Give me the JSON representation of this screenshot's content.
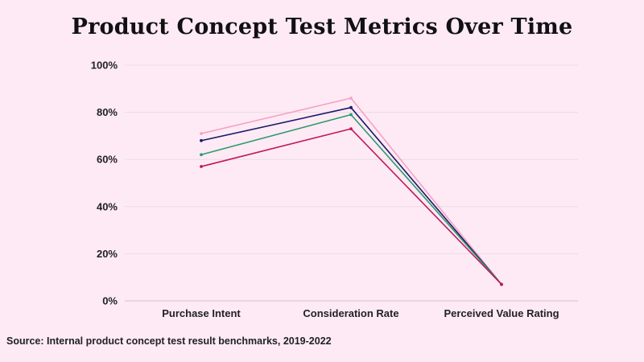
{
  "chart_data": {
    "type": "line",
    "title": "Product Concept Test Metrics Over Time",
    "categories": [
      "Purchase Intent",
      "Consideration Rate",
      "Perceived Value Rating"
    ],
    "ylim": [
      0,
      100
    ],
    "y_ticks": [
      "0%",
      "20%",
      "40%",
      "60%",
      "80%",
      "100%"
    ],
    "y_tick_values": [
      0,
      20,
      40,
      60,
      80,
      100
    ],
    "grid": true,
    "legend": "none",
    "series": [
      {
        "color": "#f7a1c4",
        "values": [
          71,
          86,
          7
        ]
      },
      {
        "color": "#1c1a6b",
        "values": [
          68,
          82,
          7
        ]
      },
      {
        "color": "#2e9a6a",
        "values": [
          62,
          79,
          7
        ]
      },
      {
        "color": "#c2185b",
        "values": [
          57,
          73,
          7
        ]
      }
    ],
    "source": "Source: Internal product concept test result benchmarks, 2019-2022"
  }
}
